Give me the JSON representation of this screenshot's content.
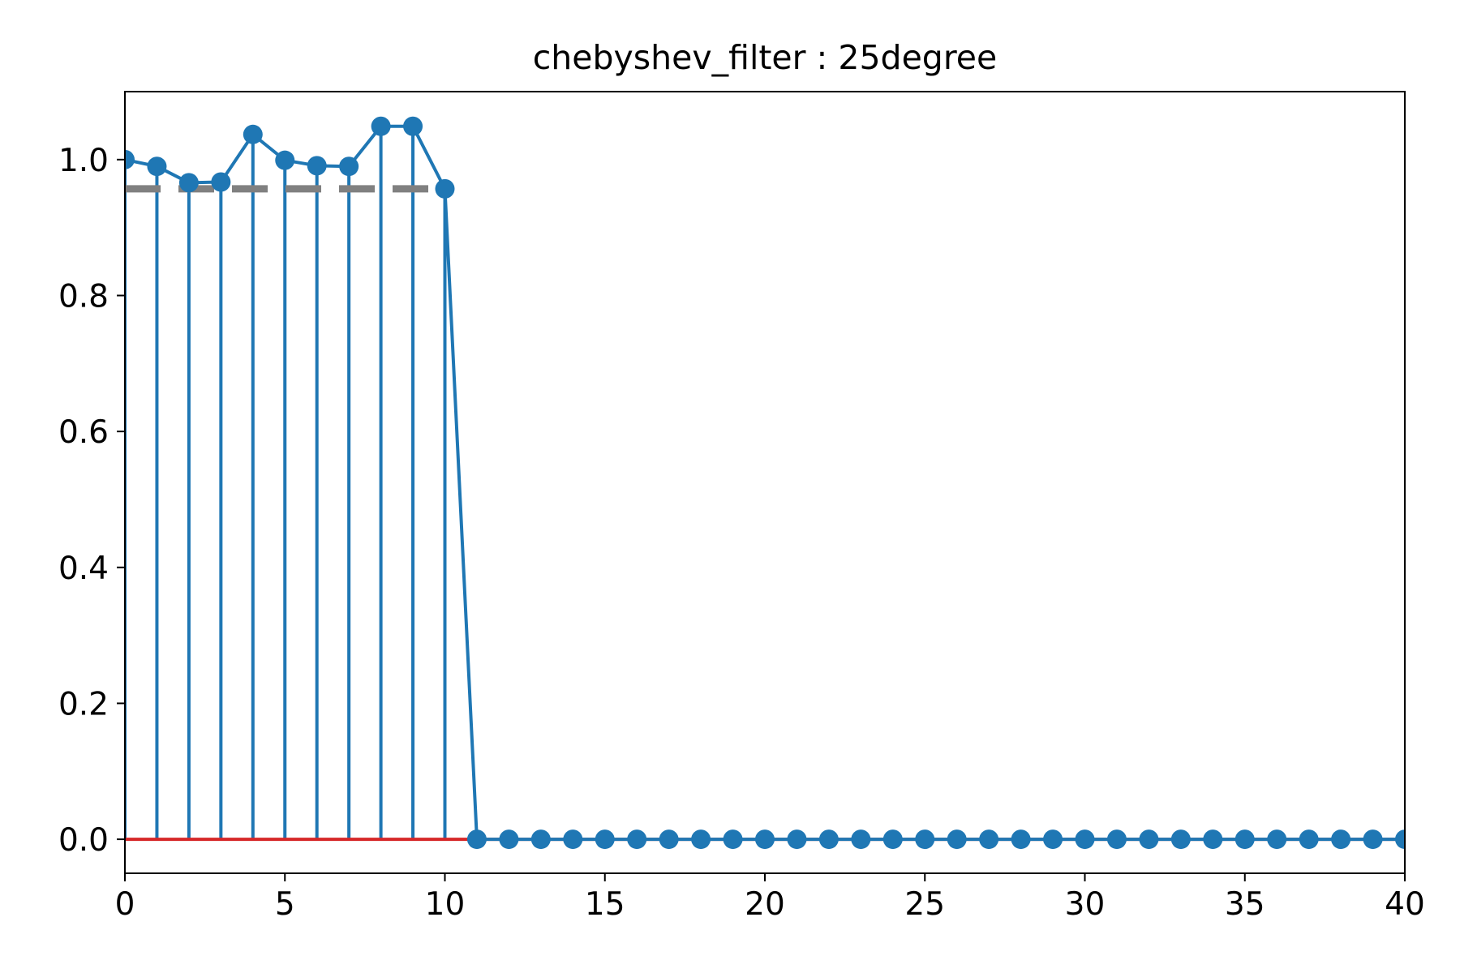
{
  "chart_data": {
    "type": "stem",
    "title": "chebyshev_filter : 25degree",
    "xlabel": "",
    "ylabel": "",
    "xlim": [
      0,
      40
    ],
    "ylim": [
      -0.05,
      1.1
    ],
    "grid": false,
    "x_ticks": [
      0,
      5,
      10,
      15,
      20,
      25,
      30,
      35,
      40
    ],
    "x_tick_labels": [
      "0",
      "5",
      "10",
      "15",
      "20",
      "25",
      "30",
      "35",
      "40"
    ],
    "y_ticks": [
      0.0,
      0.2,
      0.4,
      0.6,
      0.8,
      1.0
    ],
    "y_tick_labels": [
      "0.0",
      "0.2",
      "0.4",
      "0.6",
      "0.8",
      "1.0"
    ],
    "baseline": 0.0,
    "reference_line": {
      "y": 0.957,
      "x_range": [
        0,
        10
      ],
      "style": "dashed"
    },
    "series": [
      {
        "x": [
          0,
          1,
          2,
          3,
          4,
          5,
          6,
          7,
          8,
          9,
          10,
          11,
          12,
          13,
          14,
          15,
          16,
          17,
          18,
          19,
          20,
          21,
          22,
          23,
          24,
          25,
          26,
          27,
          28,
          29,
          30,
          31,
          32,
          33,
          34,
          35,
          36,
          37,
          38,
          39,
          40
        ],
        "values": [
          1.0,
          0.99,
          0.966,
          0.967,
          1.037,
          0.999,
          0.991,
          0.99,
          1.049,
          1.049,
          0.957,
          0,
          0,
          0,
          0,
          0,
          0,
          0,
          0,
          0,
          0,
          0,
          0,
          0,
          0,
          0,
          0,
          0,
          0,
          0,
          0,
          0,
          0,
          0,
          0,
          0,
          0,
          0,
          0,
          0,
          0
        ]
      }
    ],
    "colors": {
      "stem": "#1f77b4",
      "baseline": "#d62728",
      "reference": "#808080",
      "axes": "#000000"
    }
  }
}
